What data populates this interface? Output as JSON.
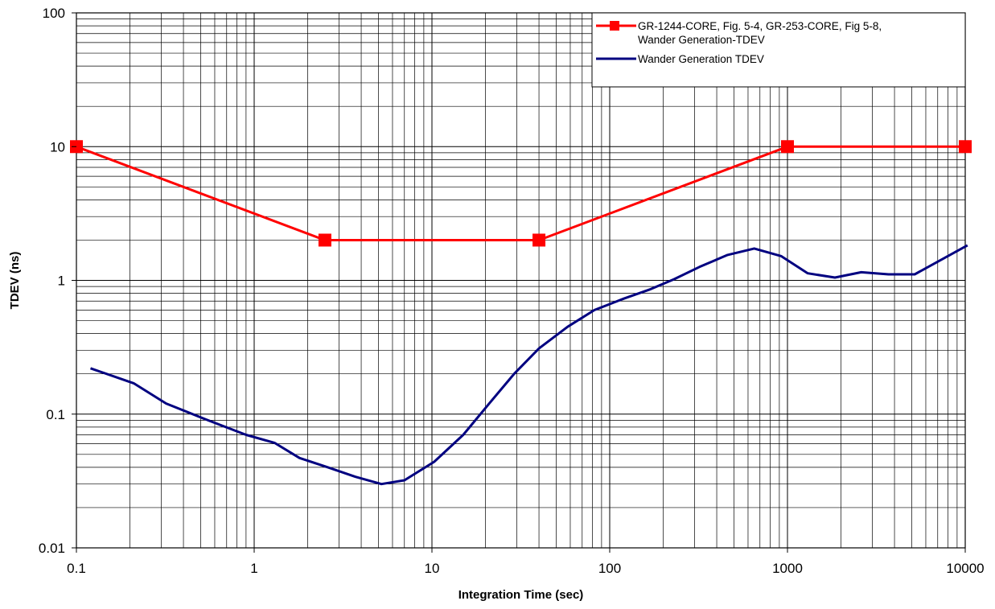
{
  "chart_data": {
    "type": "line",
    "title": "",
    "xlabel": "Integration Time (sec)",
    "ylabel": "TDEV (ns)",
    "x_scale": "log",
    "y_scale": "log",
    "xlim": [
      0.1,
      10000
    ],
    "ylim": [
      0.01,
      100
    ],
    "grid": true,
    "legend_position": "top-right",
    "x_ticks": [
      "0.1",
      "1",
      "10",
      "100",
      "1000",
      "10000"
    ],
    "y_ticks": [
      "0.01",
      "0.1",
      "1",
      "10",
      "100"
    ],
    "series": [
      {
        "name_lines": [
          "GR-1244-CORE, Fig. 5-4, GR-253-CORE, Fig 5-8,",
          "Wander Generation-TDEV"
        ],
        "color": "#ff0000",
        "marker": "square",
        "x": [
          0.1,
          2.5,
          40,
          1000,
          10000
        ],
        "y": [
          10,
          2,
          2,
          10,
          10
        ]
      },
      {
        "name_lines": [
          "Wander Generation TDEV"
        ],
        "color": "#000080",
        "marker": "none",
        "x": [
          0.12,
          0.21,
          0.32,
          0.55,
          0.9,
          1.3,
          1.8,
          2.6,
          3.7,
          5.2,
          7,
          10.3,
          15,
          21,
          29,
          40,
          58,
          82,
          120,
          170,
          230,
          320,
          460,
          650,
          920,
          1300,
          1850,
          2600,
          3700,
          5200,
          10300
        ],
        "y": [
          0.22,
          0.17,
          0.12,
          0.09,
          0.07,
          0.061,
          0.047,
          0.04,
          0.034,
          0.03,
          0.032,
          0.044,
          0.07,
          0.12,
          0.2,
          0.31,
          0.45,
          0.6,
          0.73,
          0.86,
          1.02,
          1.26,
          1.55,
          1.73,
          1.52,
          1.13,
          1.05,
          1.15,
          1.11,
          1.11,
          1.83
        ]
      }
    ]
  }
}
